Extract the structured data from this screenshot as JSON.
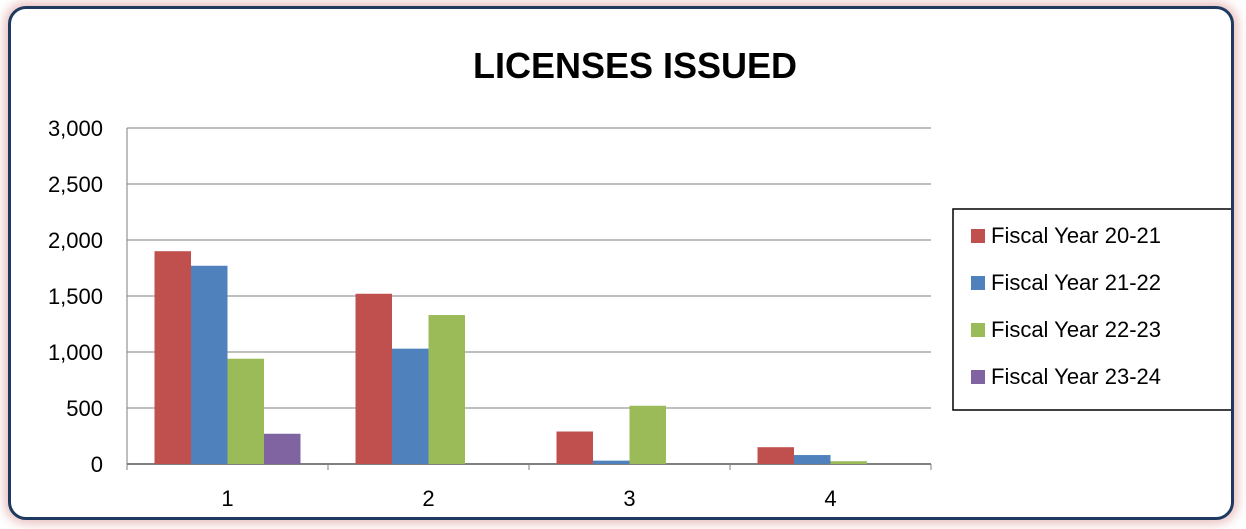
{
  "chart_data": {
    "type": "bar",
    "title": "LICENSES ISSUED",
    "xlabel": "",
    "ylabel": "",
    "categories": [
      "1",
      "2",
      "3",
      "4"
    ],
    "ylim": [
      0,
      3000
    ],
    "yticks": [
      "0",
      "500",
      "1,000",
      "1,500",
      "2,000",
      "2,500",
      "3,000"
    ],
    "grid": true,
    "legend_position": "right",
    "series": [
      {
        "name": "Fiscal Year 20-21",
        "color": "#c0504d",
        "values": [
          1900,
          1520,
          290,
          150
        ]
      },
      {
        "name": "Fiscal Year 21-22",
        "color": "#4f81bd",
        "values": [
          1770,
          1030,
          30,
          80
        ]
      },
      {
        "name": "Fiscal Year 22-23",
        "color": "#9bbb59",
        "values": [
          940,
          1330,
          520,
          25
        ]
      },
      {
        "name": "Fiscal Year 23-24",
        "color": "#8064a2",
        "values": [
          270,
          0,
          0,
          0
        ]
      }
    ]
  }
}
